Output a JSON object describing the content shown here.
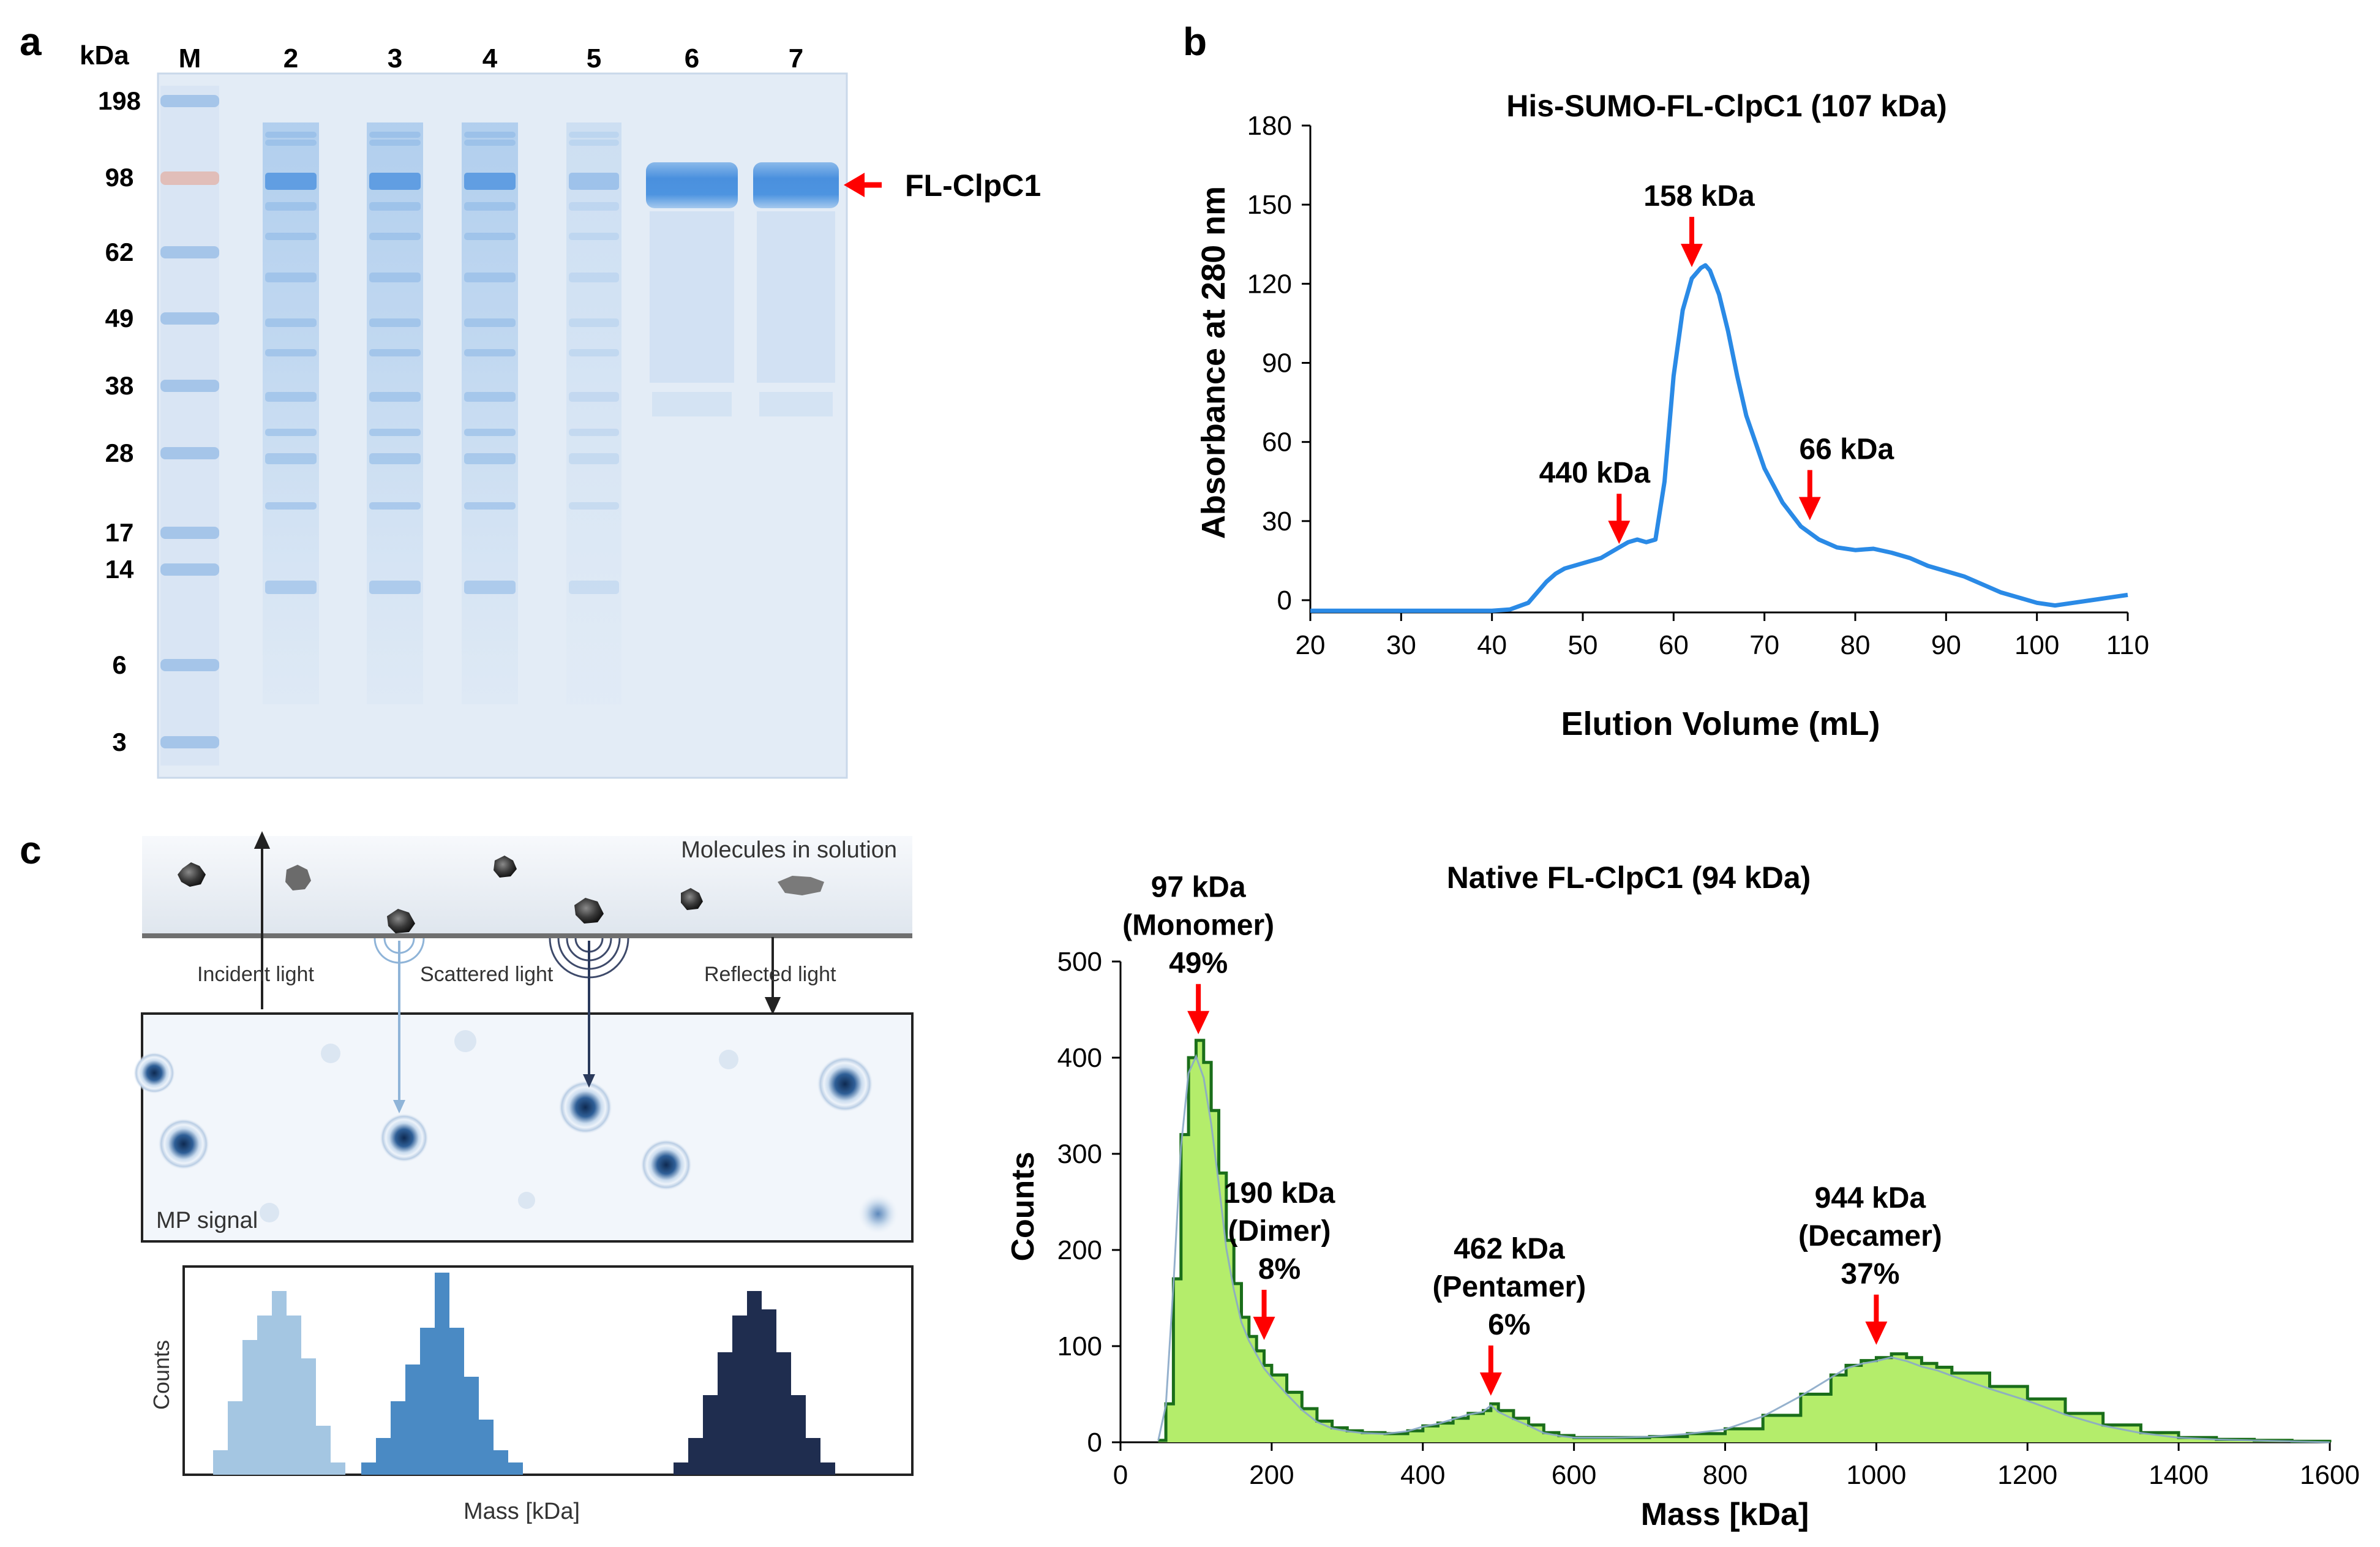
{
  "panel_labels": {
    "a": "a",
    "b": "b",
    "c": "c"
  },
  "gel": {
    "kda_header": "kDa",
    "lane_labels": [
      "M",
      "2",
      "3",
      "4",
      "5",
      "6",
      "7"
    ],
    "marker_values": [
      "198",
      "98",
      "62",
      "49",
      "38",
      "28",
      "17",
      "14",
      "6",
      "3"
    ],
    "band_label": "FL-ClpC1",
    "colors": {
      "gel_bg": "#e3ecf6",
      "stain": "#6fa6de",
      "strong_band": "#4d94e0",
      "arrow": "#ff0000"
    }
  },
  "mp_schematic": {
    "molecules_label": "Molecules in solution",
    "incident_label": "Incident light",
    "scattered_label": "Scattered light",
    "reflected_label": "Reflected light",
    "signal_label": "MP signal",
    "counts_label": "Counts",
    "mass_label": "Mass [kDa]",
    "hist_colors": [
      "#a4c6e2",
      "#4a8ac4",
      "#1f2d4f"
    ]
  },
  "chart_data": [
    {
      "type": "line",
      "title": "His-SUMO-FL-ClpC1 (107 kDa)",
      "xlabel": "Elution Volume (mL)",
      "ylabel": "Absorbance at 280 nm",
      "xlim": [
        20,
        110
      ],
      "ylim": [
        0,
        180
      ],
      "xticks": [
        20,
        30,
        40,
        50,
        60,
        70,
        80,
        90,
        100,
        110
      ],
      "yticks": [
        0,
        30,
        60,
        90,
        120,
        150,
        180
      ],
      "series": [
        {
          "x": [
            20,
            30,
            40,
            42,
            44,
            46,
            47,
            48,
            50,
            52,
            54,
            55,
            56,
            57,
            58,
            59,
            60,
            61,
            62,
            63,
            63.5,
            64,
            65,
            66,
            67,
            68,
            70,
            72,
            74,
            76,
            78,
            80,
            82,
            84,
            86,
            88,
            90,
            92,
            94,
            96,
            98,
            100,
            102,
            104,
            106,
            108,
            110
          ],
          "y": [
            -4,
            -4,
            -4,
            -3.5,
            -1,
            7,
            10,
            12,
            14,
            16,
            20,
            22,
            23,
            22,
            23,
            45,
            85,
            110,
            122,
            126,
            127,
            125,
            116,
            102,
            85,
            70,
            50,
            37,
            28,
            23,
            20,
            19,
            19.5,
            18,
            16,
            13,
            11,
            9,
            6,
            3,
            1,
            -1,
            -2,
            -1,
            0,
            1,
            2
          ]
        }
      ],
      "annotations": [
        {
          "label": "440 kDa",
          "x": 54,
          "y": 19
        },
        {
          "label": "158 kDa",
          "x": 62,
          "y": 124
        },
        {
          "label": "66 kDa",
          "x": 75,
          "y": 28
        }
      ],
      "line_color": "#2a8ae6",
      "arrow_color": "#ff0000",
      "grid": false,
      "legend": "none"
    },
    {
      "type": "area",
      "title": "Native FL-ClpC1 (94 kDa)",
      "xlabel": "Mass [kDa]",
      "ylabel": "Counts",
      "xlim": [
        0,
        1600
      ],
      "ylim": [
        0,
        500
      ],
      "xticks": [
        0,
        200,
        400,
        600,
        800,
        1000,
        1200,
        1400,
        1600
      ],
      "yticks": [
        0,
        100,
        200,
        300,
        400,
        500
      ],
      "series": [
        {
          "x": [
            50,
            60,
            70,
            80,
            90,
            100,
            110,
            120,
            130,
            140,
            150,
            160,
            170,
            180,
            190,
            200,
            220,
            240,
            260,
            280,
            300,
            320,
            350,
            380,
            400,
            420,
            440,
            460,
            480,
            490,
            500,
            520,
            540,
            560,
            580,
            600,
            650,
            700,
            750,
            800,
            850,
            900,
            940,
            960,
            980,
            1000,
            1020,
            1040,
            1060,
            1080,
            1100,
            1150,
            1200,
            1250,
            1300,
            1350,
            1400,
            1450,
            1500,
            1550,
            1600
          ],
          "y": [
            2,
            40,
            170,
            320,
            400,
            418,
            395,
            345,
            280,
            210,
            165,
            130,
            110,
            95,
            80,
            70,
            52,
            35,
            22,
            15,
            12,
            10,
            9,
            12,
            17,
            20,
            25,
            30,
            33,
            40,
            33,
            25,
            18,
            10,
            7,
            5,
            5,
            6,
            9,
            14,
            28,
            50,
            70,
            80,
            85,
            88,
            92,
            88,
            82,
            78,
            72,
            58,
            45,
            30,
            18,
            10,
            5,
            3,
            2,
            1,
            0
          ]
        }
      ],
      "annotations": [
        {
          "label_lines": [
            "97 kDa",
            "(Monomer)",
            "49%"
          ],
          "x": 103,
          "y": 418
        },
        {
          "label_lines": [
            "190 kDa",
            "(Dimer)",
            "8%"
          ],
          "x": 190,
          "y": 100
        },
        {
          "label_lines": [
            "462 kDa",
            "(Pentamer)",
            "6%"
          ],
          "x": 490,
          "y": 42
        },
        {
          "label_lines": [
            "944 kDa",
            "(Decamer)",
            "37%"
          ],
          "x": 1000,
          "y": 95
        }
      ],
      "fill_color": "#b4ed6b",
      "edge_color": "#1a6e1a",
      "fit_color": "#8aa8c8",
      "arrow_color": "#ff0000",
      "grid": false,
      "legend": "none"
    }
  ]
}
